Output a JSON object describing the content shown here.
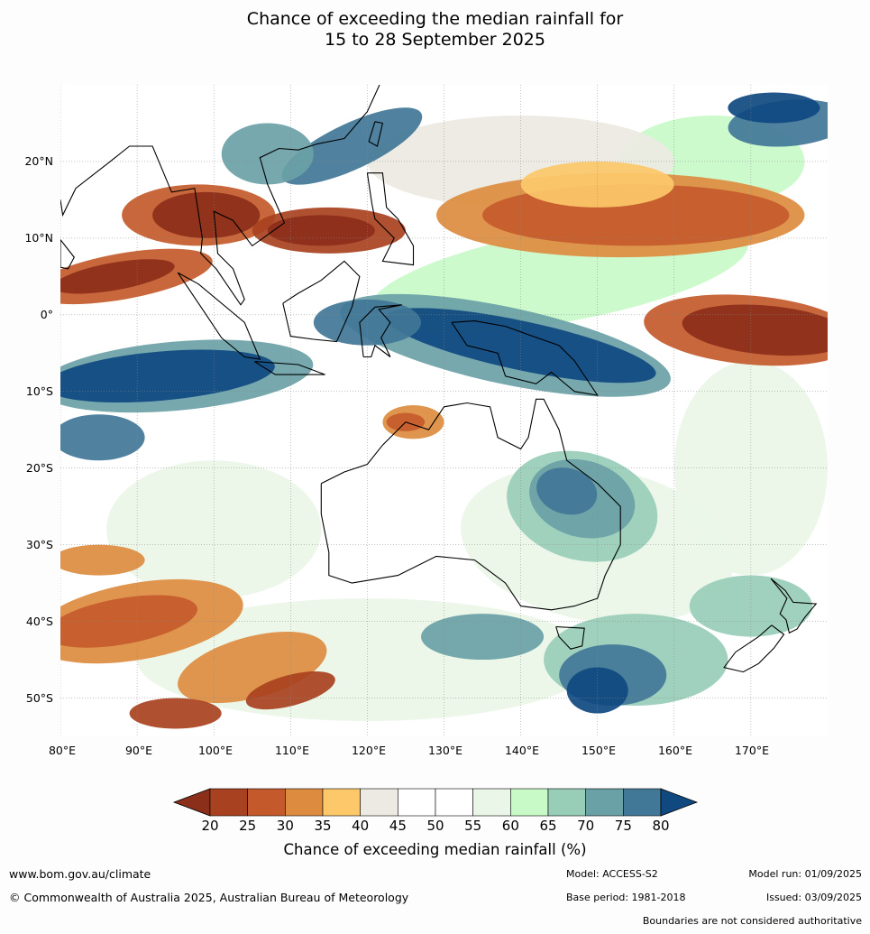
{
  "title": {
    "line1": "Chance of exceeding the median rainfall for",
    "line2": "15 to 28 September 2025"
  },
  "map": {
    "lon_range": [
      80,
      180
    ],
    "lat_range": [
      -55,
      30
    ],
    "lat_labels": [
      "20°N",
      "10°N",
      "0°",
      "10°S",
      "20°S",
      "30°S",
      "40°S",
      "50°S"
    ],
    "lon_labels": [
      "80°E",
      "90°E",
      "100°E",
      "110°E",
      "120°E",
      "130°E",
      "140°E",
      "150°E",
      "160°E",
      "170°E"
    ]
  },
  "legend": {
    "ticks": [
      "20",
      "25",
      "30",
      "35",
      "40",
      "45",
      "50",
      "55",
      "60",
      "65",
      "70",
      "75",
      "80"
    ],
    "colors": [
      "#8b2e1a",
      "#a8411f",
      "#c45a2b",
      "#dd8c3f",
      "#fcc86a",
      "#ede9e3",
      "#ffffff",
      "#ffffff",
      "#eaf6e8",
      "#c8fac8",
      "#98cdb8",
      "#6aa1a6",
      "#417797",
      "#0f4980"
    ],
    "label": "Chance of exceeding median rainfall (%)"
  },
  "footer": {
    "url": "www.bom.gov.au/climate",
    "copyright": "© Commonwealth of Australia 2025, Australian Bureau of Meteorology",
    "model": "Model: ACCESS-S2",
    "base_period": "Base period: 1981-2018",
    "model_run": "Model run: 01/09/2025",
    "issued": "Issued: 03/09/2025",
    "disclaimer": "Boundaries are not considered authoritative"
  }
}
